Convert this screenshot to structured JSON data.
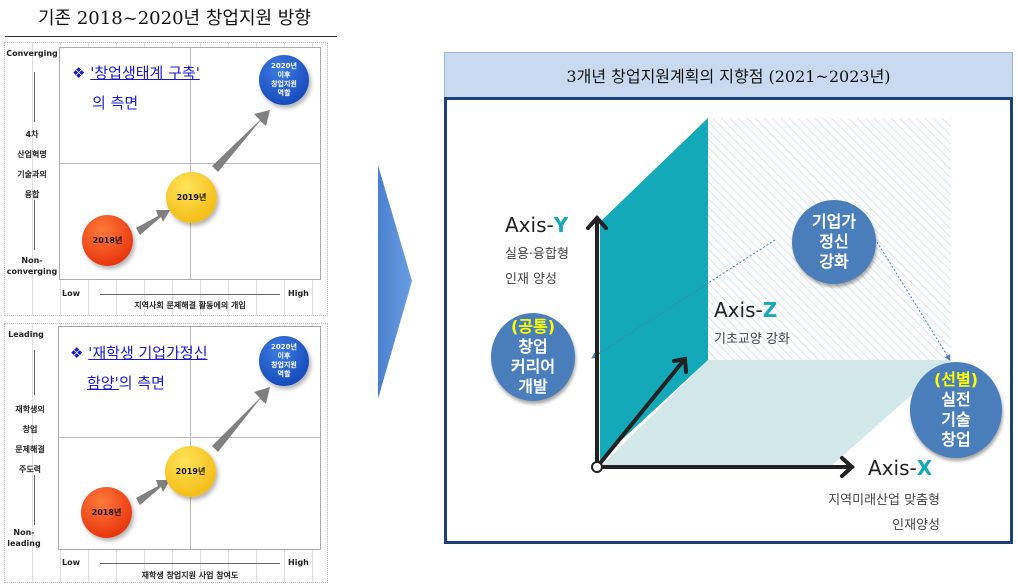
{
  "title": "기존 2018~2020년 창업지원 방향",
  "chart_top": {
    "note_title": "'창업생태계 구축'",
    "note_rest": "의 측면",
    "y_top": "Converging",
    "y_bottom_1": "Non-",
    "y_bottom_2": "converging",
    "y_label": [
      "4차",
      "산업혁명",
      "기술과의",
      "융합"
    ],
    "x_low": "Low",
    "x_high": "High",
    "x_label": "지역사회 문제해결 활동에의 개입",
    "ball_2018": "2018년",
    "ball_2019": "2019년",
    "ball_2020": [
      "2020년",
      "이후",
      "창업지원",
      "역할"
    ]
  },
  "chart_bottom": {
    "note_title": "'재학생 기업가정신",
    "note_title2": "함양'",
    "note_rest": "의 측면",
    "y_top": "Leading",
    "y_bottom_1": "Non-",
    "y_bottom_2": "leading",
    "y_label": [
      "재학생의",
      "창업",
      "문제해결",
      "주도력"
    ],
    "x_low": "Low",
    "x_high": "High",
    "x_label": "재학생 창업지원 사업 참여도",
    "ball_2018": "2018년",
    "ball_2019": "2019년",
    "ball_2020": [
      "2020년",
      "이후",
      "창업지원",
      "역할"
    ]
  },
  "right": {
    "header": "3개년 창업지원계획의 지향점 (2021~2023년)",
    "axis_y": {
      "prefix": "Axis-",
      "letter": "Y",
      "desc": [
        "실용·융합형",
        "인재 양성"
      ]
    },
    "axis_z": {
      "prefix": "Axis-",
      "letter": "Z",
      "desc": "기초교양 강화"
    },
    "axis_x": {
      "prefix": "Axis-",
      "letter": "X",
      "desc": [
        "지역미래산업 맞춤형",
        "인재양성"
      ]
    },
    "circle_top": [
      "기업가",
      "정신",
      "강화"
    ],
    "circle_left": {
      "tag": "(공통)",
      "lines": [
        "창업",
        "커리어",
        "개발"
      ]
    },
    "circle_right": {
      "tag": "(선별)",
      "lines": [
        "실전",
        "기술",
        "창업"
      ]
    }
  },
  "colors": {
    "teal": "#14a9b8",
    "circle": "#4a7ebb",
    "frame": "#1f3f7a",
    "header_bg": "#c9d9ef",
    "chevron": "#5b8fd4"
  }
}
